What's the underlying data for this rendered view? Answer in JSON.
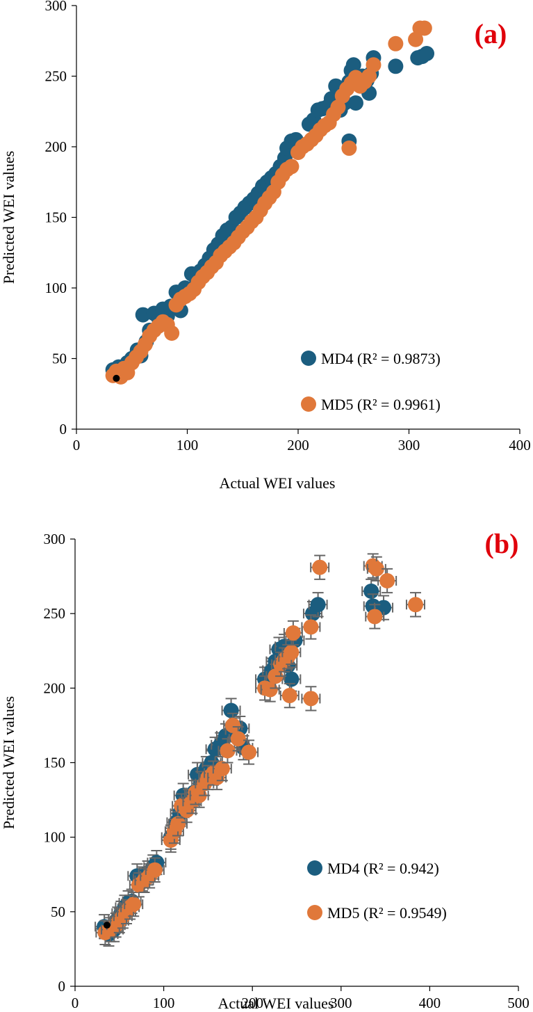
{
  "colors": {
    "md4": "#1b5d7f",
    "md5": "#e0783a",
    "tag": "#e0000b"
  },
  "chart_data": [
    {
      "type": "scatter",
      "panel_label": "(a)",
      "xlabel": "Actual WEI values",
      "ylabel": "Predicted WEI values",
      "xlim": [
        0,
        400
      ],
      "ylim": [
        0,
        300
      ],
      "xticks": [
        0,
        100,
        200,
        300,
        400
      ],
      "yticks": [
        0,
        50,
        100,
        150,
        200,
        250,
        300
      ],
      "error_bars": false,
      "legend_position": "bottom-right",
      "highlight_point": [
        36,
        36
      ],
      "series": [
        {
          "name": "MD4 (R² = 0.9873)",
          "color": "#1b5d7f",
          "points": [
            [
              33,
              42
            ],
            [
              38,
              44
            ],
            [
              42,
              40
            ],
            [
              46,
              47
            ],
            [
              50,
              50
            ],
            [
              55,
              56
            ],
            [
              58,
              52
            ],
            [
              60,
              81
            ],
            [
              63,
              62
            ],
            [
              66,
              70
            ],
            [
              70,
              82
            ],
            [
              74,
              79
            ],
            [
              78,
              85
            ],
            [
              82,
              80
            ],
            [
              85,
              87
            ],
            [
              90,
              97
            ],
            [
              94,
              84
            ],
            [
              98,
              100
            ],
            [
              104,
              110
            ],
            [
              108,
              107
            ],
            [
              112,
              112
            ],
            [
              116,
              116
            ],
            [
              120,
              121
            ],
            [
              124,
              127
            ],
            [
              128,
              131
            ],
            [
              132,
              137
            ],
            [
              136,
              141
            ],
            [
              140,
              143
            ],
            [
              144,
              150
            ],
            [
              148,
              153
            ],
            [
              152,
              157
            ],
            [
              156,
              160
            ],
            [
              160,
              163
            ],
            [
              164,
              167
            ],
            [
              168,
              172
            ],
            [
              172,
              175
            ],
            [
              176,
              178
            ],
            [
              180,
              181
            ],
            [
              184,
              186
            ],
            [
              188,
              192
            ],
            [
              190,
              199
            ],
            [
              194,
              204
            ],
            [
              198,
              205
            ],
            [
              210,
              216
            ],
            [
              214,
              219
            ],
            [
              218,
              226
            ],
            [
              222,
              227
            ],
            [
              226,
              228
            ],
            [
              230,
              234
            ],
            [
              234,
              243
            ],
            [
              238,
              226
            ],
            [
              242,
              231
            ],
            [
              246,
              246
            ],
            [
              248,
              254
            ],
            [
              250,
              258
            ],
            [
              252,
              231
            ],
            [
              246,
              204
            ],
            [
              258,
              250
            ],
            [
              262,
              247
            ],
            [
              266,
              252
            ],
            [
              268,
              263
            ],
            [
              264,
              238
            ],
            [
              288,
              257
            ],
            [
              308,
              263
            ],
            [
              312,
              264
            ],
            [
              316,
              266
            ]
          ]
        },
        {
          "name": "MD5 (R² = 0.9961)",
          "color": "#e0783a",
          "points": [
            [
              33,
              38
            ],
            [
              36,
              41
            ],
            [
              40,
              37
            ],
            [
              43,
              43
            ],
            [
              46,
              40
            ],
            [
              50,
              47
            ],
            [
              54,
              51
            ],
            [
              58,
              55
            ],
            [
              62,
              60
            ],
            [
              66,
              66
            ],
            [
              70,
              70
            ],
            [
              74,
              73
            ],
            [
              78,
              76
            ],
            [
              82,
              74
            ],
            [
              86,
              68
            ],
            [
              90,
              88
            ],
            [
              94,
              92
            ],
            [
              98,
              94
            ],
            [
              102,
              96
            ],
            [
              106,
              99
            ],
            [
              110,
              104
            ],
            [
              114,
              108
            ],
            [
              118,
              111
            ],
            [
              122,
              115
            ],
            [
              126,
              118
            ],
            [
              130,
              123
            ],
            [
              134,
              126
            ],
            [
              138,
              129
            ],
            [
              142,
              132
            ],
            [
              146,
              136
            ],
            [
              150,
              140
            ],
            [
              154,
              143
            ],
            [
              158,
              147
            ],
            [
              162,
              150
            ],
            [
              166,
              155
            ],
            [
              170,
              160
            ],
            [
              174,
              164
            ],
            [
              178,
              168
            ],
            [
              182,
              175
            ],
            [
              186,
              180
            ],
            [
              190,
              184
            ],
            [
              194,
              186
            ],
            [
              200,
              196
            ],
            [
              204,
              200
            ],
            [
              208,
              202
            ],
            [
              212,
              205
            ],
            [
              216,
              208
            ],
            [
              220,
              212
            ],
            [
              224,
              215
            ],
            [
              228,
              217
            ],
            [
              232,
              223
            ],
            [
              236,
              228
            ],
            [
              240,
              236
            ],
            [
              244,
              241
            ],
            [
              248,
              245
            ],
            [
              252,
              249
            ],
            [
              246,
              199
            ],
            [
              256,
              243
            ],
            [
              260,
              246
            ],
            [
              264,
              250
            ],
            [
              268,
              258
            ],
            [
              288,
              273
            ],
            [
              306,
              276
            ],
            [
              310,
              284
            ],
            [
              314,
              284
            ]
          ]
        }
      ]
    },
    {
      "type": "scatter",
      "panel_label": "(b)",
      "xlabel": "Actual WEI values",
      "ylabel": "Predicted WEI values",
      "xlim": [
        0,
        500
      ],
      "ylim": [
        0,
        300
      ],
      "xticks": [
        0,
        100,
        200,
        300,
        400,
        500
      ],
      "yticks": [
        0,
        50,
        100,
        150,
        200,
        250,
        300
      ],
      "error_bars": true,
      "error_bar_size": 8,
      "legend_position": "bottom-right",
      "highlight_point": [
        36,
        41
      ],
      "series": [
        {
          "name": "MD4 (R² = 0.942)",
          "color": "#1b5d7f",
          "points": [
            [
              33,
              40
            ],
            [
              38,
              35
            ],
            [
              44,
              38
            ],
            [
              48,
              45
            ],
            [
              52,
              49
            ],
            [
              56,
              53
            ],
            [
              60,
              56
            ],
            [
              64,
              57
            ],
            [
              70,
              74
            ],
            [
              76,
              72
            ],
            [
              82,
              76
            ],
            [
              88,
              80
            ],
            [
              92,
              83
            ],
            [
              108,
              100
            ],
            [
              114,
              110
            ],
            [
              118,
              116
            ],
            [
              122,
              128
            ],
            [
              128,
              124
            ],
            [
              134,
              130
            ],
            [
              138,
              142
            ],
            [
              142,
              136
            ],
            [
              148,
              146
            ],
            [
              154,
              150
            ],
            [
              158,
              159
            ],
            [
              164,
              162
            ],
            [
              170,
              168
            ],
            [
              176,
              185
            ],
            [
              180,
              172
            ],
            [
              186,
              173
            ],
            [
              190,
              160
            ],
            [
              214,
              206
            ],
            [
              222,
              212
            ],
            [
              226,
              218
            ],
            [
              230,
              226
            ],
            [
              236,
              228
            ],
            [
              240,
              215
            ],
            [
              244,
              206
            ],
            [
              248,
              232
            ],
            [
              268,
              250
            ],
            [
              274,
              256
            ],
            [
              334,
              265
            ],
            [
              336,
              255
            ],
            [
              348,
              254
            ]
          ]
        },
        {
          "name": "MD5 (R² = 0.9549)",
          "color": "#e0783a",
          "points": [
            [
              34,
              36
            ],
            [
              40,
              38
            ],
            [
              46,
              41
            ],
            [
              50,
              44
            ],
            [
              54,
              47
            ],
            [
              58,
              50
            ],
            [
              62,
              53
            ],
            [
              66,
              55
            ],
            [
              72,
              68
            ],
            [
              78,
              71
            ],
            [
              84,
              74
            ],
            [
              90,
              78
            ],
            [
              108,
              98
            ],
            [
              112,
              104
            ],
            [
              116,
              109
            ],
            [
              120,
              121
            ],
            [
              126,
              118
            ],
            [
              132,
              124
            ],
            [
              136,
              130
            ],
            [
              140,
              128
            ],
            [
              146,
              136
            ],
            [
              150,
              140
            ],
            [
              156,
              143
            ],
            [
              160,
              140
            ],
            [
              166,
              146
            ],
            [
              172,
              158
            ],
            [
              178,
              175
            ],
            [
              184,
              166
            ],
            [
              196,
              157
            ],
            [
              214,
              200
            ],
            [
              220,
              199
            ],
            [
              226,
              208
            ],
            [
              232,
              216
            ],
            [
              236,
              219
            ],
            [
              240,
              221
            ],
            [
              244,
              224
            ],
            [
              242,
              195
            ],
            [
              246,
              237
            ],
            [
              266,
              241
            ],
            [
              266,
              193
            ],
            [
              276,
              281
            ],
            [
              336,
              282
            ],
            [
              340,
              280
            ],
            [
              338,
              248
            ],
            [
              352,
              272
            ],
            [
              384,
              256
            ]
          ]
        }
      ]
    }
  ]
}
